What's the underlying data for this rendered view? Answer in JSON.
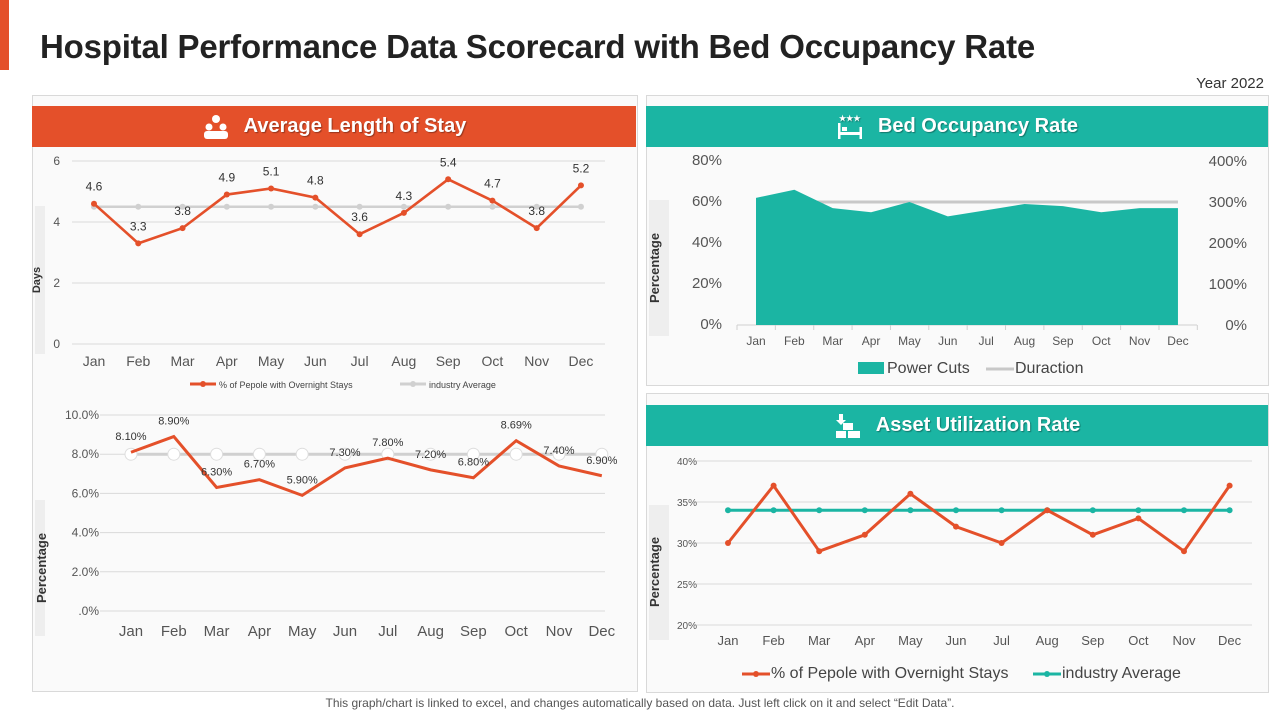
{
  "title": "Hospital Performance Data Scorecard with Bed Occupancy Rate",
  "year": "Year 2022",
  "footer": "This graph/chart is linked to excel, and changes automatically based on data. Just left click on it and select “Edit Data”.",
  "colors": {
    "orange": "#E4502A",
    "teal": "#1BB5A3",
    "gray": "#D0D0D0"
  },
  "panels": {
    "stay": {
      "header": "Average Length of Stay",
      "icon": "people-icon"
    },
    "bed": {
      "header": "Bed Occupancy Rate",
      "icon": "hotel-bed-icon"
    },
    "asset": {
      "header": "Asset Utilization  Rate",
      "icon": "asset-boxes-icon"
    }
  },
  "chart_data": [
    {
      "type": "line",
      "ylabel": "Days",
      "categories": [
        "Jan",
        "Feb",
        "Mar",
        "Apr",
        "May",
        "Jun",
        "Jul",
        "Aug",
        "Sep",
        "Oct",
        "Nov",
        "Dec"
      ],
      "ylim": [
        0,
        6
      ],
      "yticks": [
        "0",
        "2",
        "4",
        "6"
      ],
      "grid": true,
      "legend": "bottom",
      "series": [
        {
          "name": "% of Pepole with Overnight Stays",
          "color": "#E4502A",
          "values": [
            4.6,
            3.3,
            3.8,
            4.9,
            5.1,
            4.8,
            3.6,
            4.3,
            5.4,
            4.7,
            3.8,
            5.2
          ],
          "labels": [
            "4.6",
            "3.3",
            "3.8",
            "4.9",
            "5.1",
            "4.8",
            "3.6",
            "4.3",
            "5.4",
            "4.7",
            "3.8",
            "5.2"
          ]
        },
        {
          "name": "industry Average",
          "color": "#D0D0D0",
          "values": [
            4.5,
            4.5,
            4.5,
            4.5,
            4.5,
            4.5,
            4.5,
            4.5,
            4.5,
            4.5,
            4.5,
            4.5
          ]
        }
      ]
    },
    {
      "type": "line",
      "ylabel": "Percentage",
      "categories": [
        "Jan",
        "Feb",
        "Mar",
        "Apr",
        "May",
        "Jun",
        "Jul",
        "Aug",
        "Sep",
        "Oct",
        "Nov",
        "Dec"
      ],
      "ylim": [
        0,
        10
      ],
      "yticks": [
        ".0%",
        "2.0%",
        "4.0%",
        "6.0%",
        "8.0%",
        "10.0%"
      ],
      "grid": true,
      "series": [
        {
          "color": "#E4502A",
          "values": [
            8.1,
            8.9,
            6.3,
            6.7,
            5.9,
            7.3,
            7.8,
            7.2,
            6.8,
            8.69,
            7.4,
            6.9
          ],
          "labels": [
            "8.10%",
            "8.90%",
            "6.30%",
            "6.70%",
            "5.90%",
            "7.30%",
            "7.80%",
            "7.20%",
            "6.80%",
            "8.69%",
            "7.40%",
            "6.90%"
          ]
        },
        {
          "color": "#D0D0D0",
          "values": [
            8,
            8,
            8,
            8,
            8,
            8,
            8,
            8,
            8,
            8,
            8,
            8
          ]
        }
      ]
    },
    {
      "type": "area",
      "ylabel": "Percentage",
      "categories": [
        "Jan",
        "Feb",
        "Mar",
        "Apr",
        "May",
        "Jun",
        "Jul",
        "Aug",
        "Sep",
        "Oct",
        "Nov",
        "Dec"
      ],
      "ylim": [
        0,
        80
      ],
      "yticks": [
        "0%",
        "20%",
        "40%",
        "60%",
        "80%"
      ],
      "y2lim": [
        0,
        400
      ],
      "y2ticks": [
        "0%",
        "100%",
        "200%",
        "300%",
        "400%"
      ],
      "grid": false,
      "legend": "bottom",
      "series": [
        {
          "name": "Power Cuts",
          "type": "area",
          "axis": "left",
          "color": "#1BB5A3",
          "values": [
            62,
            66,
            57,
            55,
            60,
            53,
            56,
            59,
            58,
            55,
            57,
            57
          ]
        },
        {
          "name": "Duraction",
          "type": "line",
          "axis": "right",
          "color": "#C8C8C8",
          "values": [
            300,
            300,
            300,
            300,
            300,
            300,
            300,
            300,
            300,
            300,
            300,
            300
          ]
        }
      ]
    },
    {
      "type": "line",
      "ylabel": "Percentage",
      "categories": [
        "Jan",
        "Feb",
        "Mar",
        "Apr",
        "May",
        "Jun",
        "Jul",
        "Aug",
        "Sep",
        "Oct",
        "Nov",
        "Dec"
      ],
      "ylim": [
        20,
        40
      ],
      "yticks": [
        "20%",
        "25%",
        "30%",
        "35%",
        "40%"
      ],
      "grid": true,
      "legend": "bottom",
      "series": [
        {
          "name": "% of Pepole with Overnight Stays",
          "color": "#E4502A",
          "values": [
            30,
            37,
            29,
            31,
            36,
            32,
            30,
            34,
            31,
            33,
            29,
            37
          ]
        },
        {
          "name": "industry Average",
          "color": "#1BB5A3",
          "values": [
            34,
            34,
            34,
            34,
            34,
            34,
            34,
            34,
            34,
            34,
            34,
            34
          ]
        }
      ]
    }
  ]
}
